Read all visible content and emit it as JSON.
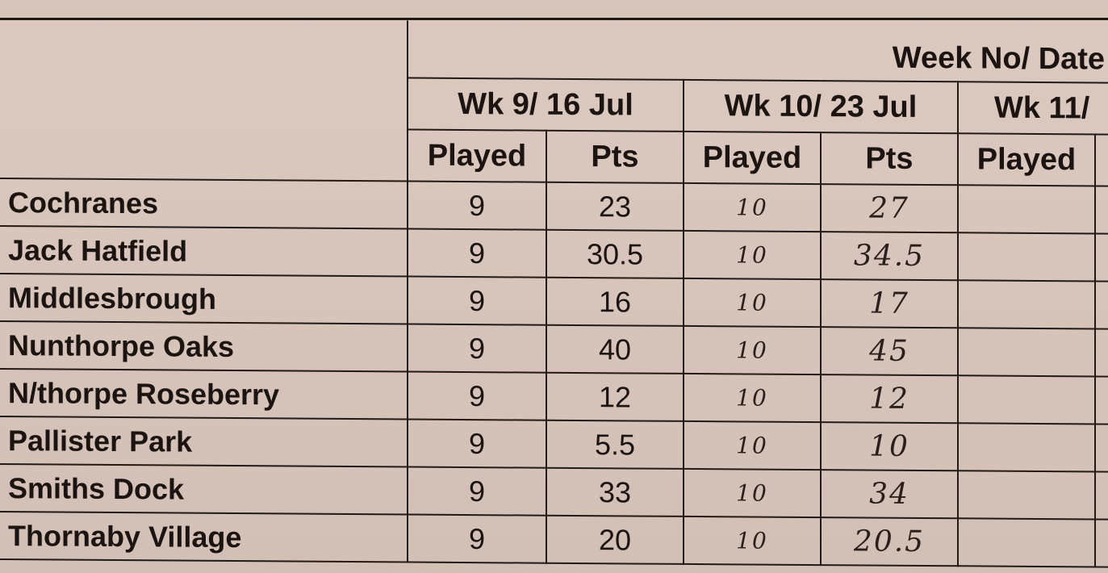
{
  "header": {
    "week_title": "Week No/ Date",
    "weeks": [
      "Wk 9/ 16 Jul",
      "Wk 10/ 23 Jul",
      "Wk 11/"
    ],
    "played_label": "Played",
    "pts_label": "Pts"
  },
  "rows": [
    {
      "team": "Cochranes",
      "wk9_played": "9",
      "wk9_pts": "23",
      "wk10_played": "10",
      "wk10_pts": "27"
    },
    {
      "team": "Jack Hatfield",
      "wk9_played": "9",
      "wk9_pts": "30.5",
      "wk10_played": "10",
      "wk10_pts": "34.5"
    },
    {
      "team": "Middlesbrough",
      "wk9_played": "9",
      "wk9_pts": "16",
      "wk10_played": "10",
      "wk10_pts": "17"
    },
    {
      "team": "Nunthorpe Oaks",
      "wk9_played": "9",
      "wk9_pts": "40",
      "wk10_played": "10",
      "wk10_pts": "45"
    },
    {
      "team": "N/thorpe Roseberry",
      "wk9_played": "9",
      "wk9_pts": "12",
      "wk10_played": "10",
      "wk10_pts": "12"
    },
    {
      "team": "Pallister Park",
      "wk9_played": "9",
      "wk9_pts": "5.5",
      "wk10_played": "10",
      "wk10_pts": "10"
    },
    {
      "team": "Smiths Dock",
      "wk9_played": "9",
      "wk9_pts": "33",
      "wk10_played": "10",
      "wk10_pts": "34"
    },
    {
      "team": "Thornaby Village",
      "wk9_played": "9",
      "wk9_pts": "20",
      "wk10_played": "10",
      "wk10_pts": "20.5"
    }
  ]
}
